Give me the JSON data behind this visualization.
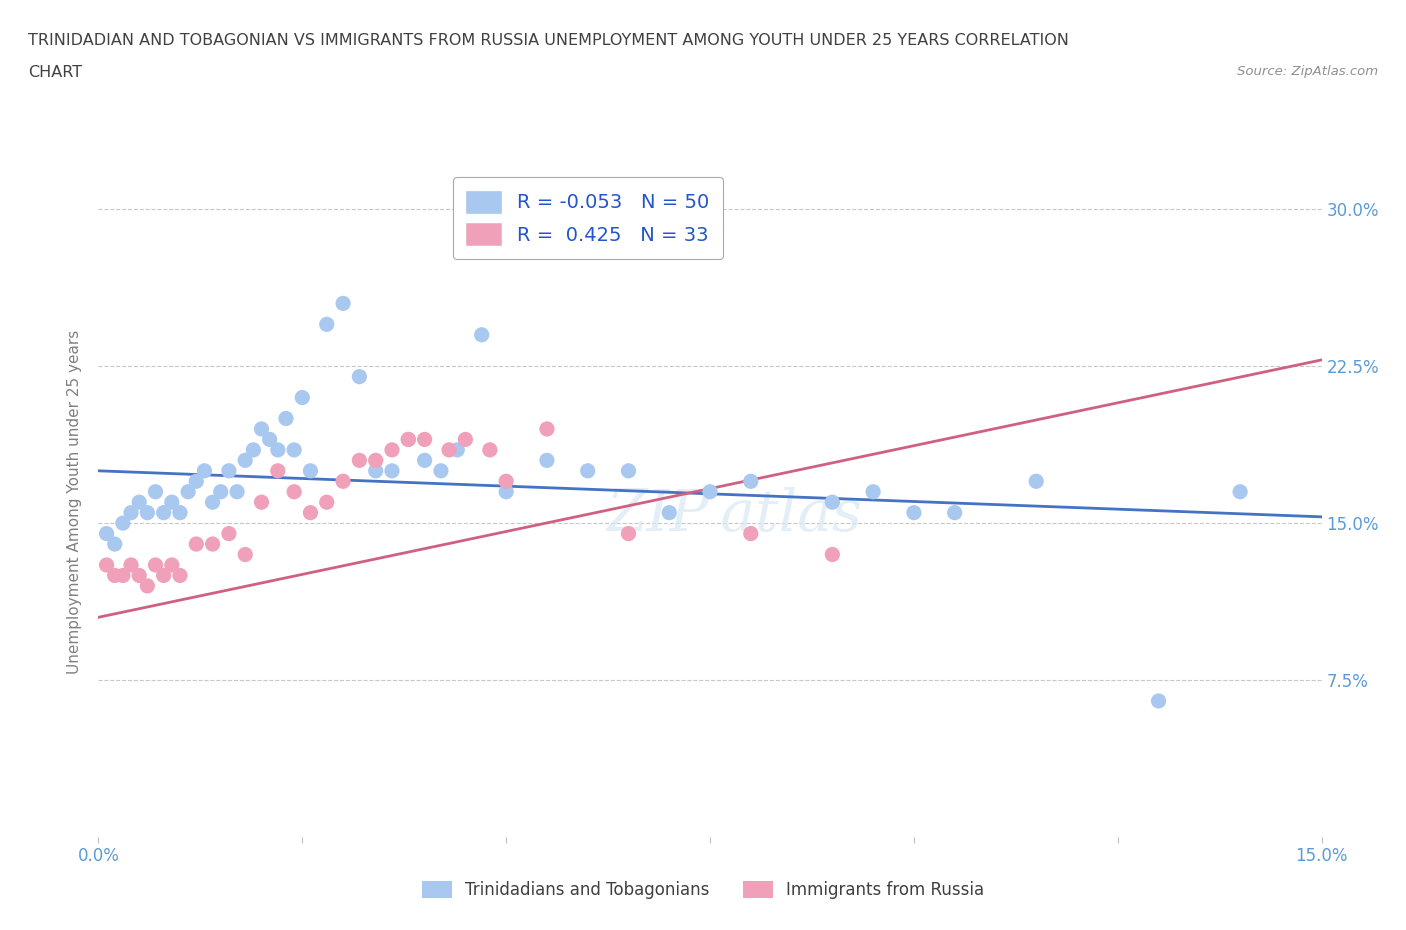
{
  "title_line1": "TRINIDADIAN AND TOBAGONIAN VS IMMIGRANTS FROM RUSSIA UNEMPLOYMENT AMONG YOUTH UNDER 25 YEARS CORRELATION",
  "title_line2": "CHART",
  "source_text": "Source: ZipAtlas.com",
  "ylabel_label": "Unemployment Among Youth under 25 years",
  "legend_label1": "Trinidadians and Tobagonians",
  "legend_label2": "Immigrants from Russia",
  "R1": "-0.053",
  "N1": "50",
  "R2": "0.425",
  "N2": "33",
  "color_blue": "#A8C8F0",
  "color_pink": "#F0A0B8",
  "color_line_blue": "#4472C4",
  "color_line_pink": "#D06080",
  "color_title": "#404040",
  "color_source": "#909090",
  "color_legend_text": "#2255CC",
  "color_axis_label": "#808080",
  "color_tick_blue": "#5B9BD5",
  "xlim": [
    0.0,
    0.15
  ],
  "ylim": [
    0.0,
    0.32
  ],
  "blue_x": [
    0.001,
    0.002,
    0.003,
    0.004,
    0.005,
    0.006,
    0.007,
    0.008,
    0.009,
    0.01,
    0.011,
    0.012,
    0.013,
    0.014,
    0.015,
    0.016,
    0.017,
    0.018,
    0.019,
    0.02,
    0.021,
    0.022,
    0.023,
    0.024,
    0.025,
    0.026,
    0.028,
    0.03,
    0.032,
    0.034,
    0.036,
    0.038,
    0.04,
    0.042,
    0.044,
    0.047,
    0.05,
    0.055,
    0.06,
    0.065,
    0.07,
    0.075,
    0.08,
    0.09,
    0.095,
    0.1,
    0.105,
    0.115,
    0.13,
    0.14
  ],
  "blue_y": [
    0.145,
    0.14,
    0.15,
    0.155,
    0.16,
    0.155,
    0.165,
    0.155,
    0.16,
    0.155,
    0.165,
    0.17,
    0.175,
    0.16,
    0.165,
    0.175,
    0.165,
    0.18,
    0.185,
    0.195,
    0.19,
    0.185,
    0.2,
    0.185,
    0.21,
    0.175,
    0.245,
    0.255,
    0.22,
    0.175,
    0.175,
    0.19,
    0.18,
    0.175,
    0.185,
    0.24,
    0.165,
    0.18,
    0.175,
    0.175,
    0.155,
    0.165,
    0.17,
    0.16,
    0.165,
    0.155,
    0.155,
    0.17,
    0.065,
    0.165
  ],
  "pink_x": [
    0.001,
    0.002,
    0.003,
    0.004,
    0.005,
    0.006,
    0.007,
    0.008,
    0.009,
    0.01,
    0.012,
    0.014,
    0.016,
    0.018,
    0.02,
    0.022,
    0.024,
    0.026,
    0.028,
    0.03,
    0.032,
    0.034,
    0.036,
    0.038,
    0.04,
    0.043,
    0.045,
    0.048,
    0.05,
    0.055,
    0.065,
    0.08,
    0.09
  ],
  "pink_y": [
    0.13,
    0.125,
    0.125,
    0.13,
    0.125,
    0.12,
    0.13,
    0.125,
    0.13,
    0.125,
    0.14,
    0.14,
    0.145,
    0.135,
    0.16,
    0.175,
    0.165,
    0.155,
    0.16,
    0.17,
    0.18,
    0.18,
    0.185,
    0.19,
    0.19,
    0.185,
    0.19,
    0.185,
    0.17,
    0.195,
    0.145,
    0.145,
    0.135
  ],
  "blue_line_x0": 0.0,
  "blue_line_x1": 0.15,
  "blue_line_y0": 0.175,
  "blue_line_y1": 0.153,
  "pink_line_x0": 0.0,
  "pink_line_x1": 0.15,
  "pink_line_y0": 0.105,
  "pink_line_y1": 0.228
}
